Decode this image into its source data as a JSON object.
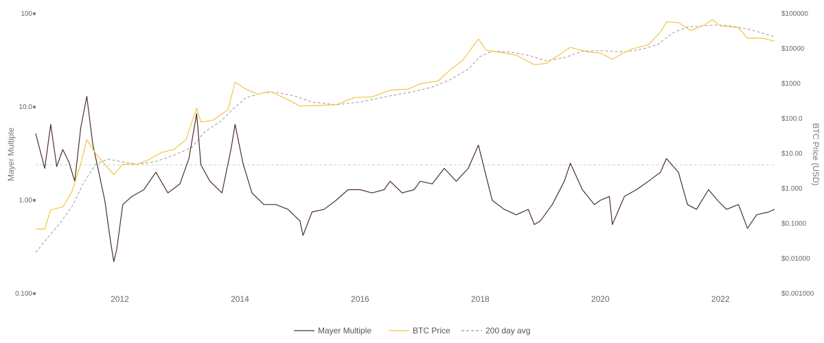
{
  "chart_data": {
    "type": "line",
    "title": "",
    "left_axis": {
      "label": "Mayer Multiple",
      "scale": "log",
      "range": [
        0.1,
        100
      ],
      "ticks": [
        {
          "value": 0.1,
          "label": "0.100"
        },
        {
          "value": 1,
          "label": "1.00"
        },
        {
          "value": 10,
          "label": "10.0"
        },
        {
          "value": 100,
          "label": "100"
        }
      ]
    },
    "right_axis": {
      "label": "BTC Price (USD)",
      "scale": "log",
      "range": [
        0.001,
        100000
      ],
      "ticks": [
        {
          "value": 0.001,
          "label": "$0.001000"
        },
        {
          "value": 0.01,
          "label": "$0.01000"
        },
        {
          "value": 0.1,
          "label": "$0.1000"
        },
        {
          "value": 1,
          "label": "$1.000"
        },
        {
          "value": 10,
          "label": "$10.00"
        },
        {
          "value": 100,
          "label": "$100.0"
        },
        {
          "value": 1000,
          "label": "$1000"
        },
        {
          "value": 10000,
          "label": "$10000"
        },
        {
          "value": 100000,
          "label": "$100000"
        }
      ]
    },
    "x_axis": {
      "range": [
        2010.6,
        2022.9
      ],
      "ticks": [
        {
          "value": 2012,
          "label": "2012"
        },
        {
          "value": 2014,
          "label": "2014"
        },
        {
          "value": 2016,
          "label": "2016"
        },
        {
          "value": 2018,
          "label": "2018"
        },
        {
          "value": 2020,
          "label": "2020"
        },
        {
          "value": 2022,
          "label": "2022"
        }
      ]
    },
    "reference_line": {
      "axis": "left",
      "value": 2.4,
      "style": "dashed"
    },
    "legend": {
      "position": "bottom-center"
    },
    "series": [
      {
        "name": "Mayer Multiple",
        "axis": "left",
        "color": "#4a2e28",
        "style": "solid",
        "points": [
          [
            2010.6,
            5.2
          ],
          [
            2010.75,
            2.2
          ],
          [
            2010.85,
            6.5
          ],
          [
            2010.95,
            2.3
          ],
          [
            2011.05,
            3.5
          ],
          [
            2011.15,
            2.6
          ],
          [
            2011.25,
            1.6
          ],
          [
            2011.35,
            6.0
          ],
          [
            2011.45,
            13.0
          ],
          [
            2011.55,
            4.0
          ],
          [
            2011.65,
            2.0
          ],
          [
            2011.75,
            1.0
          ],
          [
            2011.85,
            0.35
          ],
          [
            2011.9,
            0.22
          ],
          [
            2011.95,
            0.3
          ],
          [
            2012.05,
            0.9
          ],
          [
            2012.2,
            1.1
          ],
          [
            2012.4,
            1.3
          ],
          [
            2012.6,
            2.0
          ],
          [
            2012.8,
            1.2
          ],
          [
            2013.0,
            1.5
          ],
          [
            2013.15,
            2.8
          ],
          [
            2013.28,
            8.5
          ],
          [
            2013.35,
            2.4
          ],
          [
            2013.5,
            1.6
          ],
          [
            2013.7,
            1.2
          ],
          [
            2013.85,
            3.5
          ],
          [
            2013.92,
            6.5
          ],
          [
            2014.05,
            2.5
          ],
          [
            2014.2,
            1.2
          ],
          [
            2014.4,
            0.9
          ],
          [
            2014.6,
            0.9
          ],
          [
            2014.8,
            0.8
          ],
          [
            2015.0,
            0.6
          ],
          [
            2015.05,
            0.42
          ],
          [
            2015.2,
            0.75
          ],
          [
            2015.4,
            0.8
          ],
          [
            2015.6,
            1.0
          ],
          [
            2015.8,
            1.3
          ],
          [
            2016.0,
            1.3
          ],
          [
            2016.2,
            1.2
          ],
          [
            2016.4,
            1.3
          ],
          [
            2016.5,
            1.6
          ],
          [
            2016.7,
            1.2
          ],
          [
            2016.9,
            1.3
          ],
          [
            2017.0,
            1.6
          ],
          [
            2017.2,
            1.5
          ],
          [
            2017.4,
            2.2
          ],
          [
            2017.6,
            1.6
          ],
          [
            2017.8,
            2.2
          ],
          [
            2017.97,
            3.9
          ],
          [
            2018.1,
            1.8
          ],
          [
            2018.2,
            1.0
          ],
          [
            2018.4,
            0.8
          ],
          [
            2018.6,
            0.7
          ],
          [
            2018.8,
            0.8
          ],
          [
            2018.9,
            0.55
          ],
          [
            2019.0,
            0.6
          ],
          [
            2019.2,
            0.9
          ],
          [
            2019.4,
            1.6
          ],
          [
            2019.5,
            2.5
          ],
          [
            2019.7,
            1.3
          ],
          [
            2019.9,
            0.9
          ],
          [
            2020.0,
            1.0
          ],
          [
            2020.15,
            1.1
          ],
          [
            2020.2,
            0.55
          ],
          [
            2020.4,
            1.1
          ],
          [
            2020.6,
            1.3
          ],
          [
            2020.8,
            1.6
          ],
          [
            2021.0,
            2.0
          ],
          [
            2021.1,
            2.8
          ],
          [
            2021.3,
            2.0
          ],
          [
            2021.45,
            0.9
          ],
          [
            2021.6,
            0.8
          ],
          [
            2021.8,
            1.3
          ],
          [
            2021.95,
            1.0
          ],
          [
            2022.1,
            0.8
          ],
          [
            2022.3,
            0.9
          ],
          [
            2022.45,
            0.5
          ],
          [
            2022.6,
            0.7
          ],
          [
            2022.8,
            0.75
          ],
          [
            2022.9,
            0.8
          ]
        ]
      },
      {
        "name": "BTC Price",
        "axis": "right",
        "color": "#f5c342",
        "style": "solid",
        "points": [
          [
            2010.6,
            0.07
          ],
          [
            2010.75,
            0.07
          ],
          [
            2010.85,
            0.25
          ],
          [
            2011.05,
            0.3
          ],
          [
            2011.2,
            0.8
          ],
          [
            2011.35,
            5.0
          ],
          [
            2011.45,
            25
          ],
          [
            2011.6,
            10
          ],
          [
            2011.75,
            5
          ],
          [
            2011.9,
            2.5
          ],
          [
            2012.05,
            5
          ],
          [
            2012.3,
            5
          ],
          [
            2012.5,
            7
          ],
          [
            2012.7,
            11
          ],
          [
            2012.9,
            13
          ],
          [
            2013.1,
            25
          ],
          [
            2013.28,
            200
          ],
          [
            2013.35,
            80
          ],
          [
            2013.55,
            90
          ],
          [
            2013.8,
            180
          ],
          [
            2013.92,
            1100
          ],
          [
            2014.1,
            700
          ],
          [
            2014.3,
            500
          ],
          [
            2014.5,
            600
          ],
          [
            2014.8,
            350
          ],
          [
            2015.0,
            230
          ],
          [
            2015.3,
            240
          ],
          [
            2015.6,
            250
          ],
          [
            2015.9,
            400
          ],
          [
            2016.2,
            420
          ],
          [
            2016.5,
            650
          ],
          [
            2016.8,
            700
          ],
          [
            2017.0,
            1000
          ],
          [
            2017.3,
            1200
          ],
          [
            2017.5,
            2500
          ],
          [
            2017.7,
            4500
          ],
          [
            2017.97,
            19000
          ],
          [
            2018.1,
            9000
          ],
          [
            2018.3,
            8000
          ],
          [
            2018.6,
            6500
          ],
          [
            2018.9,
            3500
          ],
          [
            2019.1,
            3800
          ],
          [
            2019.5,
            11000
          ],
          [
            2019.8,
            8000
          ],
          [
            2020.0,
            7500
          ],
          [
            2020.2,
            5000
          ],
          [
            2020.5,
            9500
          ],
          [
            2020.8,
            13000
          ],
          [
            2021.0,
            30000
          ],
          [
            2021.1,
            58000
          ],
          [
            2021.3,
            56000
          ],
          [
            2021.5,
            33000
          ],
          [
            2021.7,
            45000
          ],
          [
            2021.87,
            67000
          ],
          [
            2022.0,
            45000
          ],
          [
            2022.3,
            40000
          ],
          [
            2022.45,
            20000
          ],
          [
            2022.7,
            20000
          ],
          [
            2022.9,
            16500
          ]
        ]
      },
      {
        "name": "200 day avg",
        "axis": "right",
        "color": "#999999",
        "style": "dashed",
        "points": [
          [
            2010.6,
            0.015
          ],
          [
            2010.8,
            0.04
          ],
          [
            2011.0,
            0.1
          ],
          [
            2011.2,
            0.3
          ],
          [
            2011.4,
            1.5
          ],
          [
            2011.6,
            5
          ],
          [
            2011.8,
            7
          ],
          [
            2012.0,
            6
          ],
          [
            2012.3,
            5
          ],
          [
            2012.6,
            6
          ],
          [
            2012.9,
            9
          ],
          [
            2013.2,
            15
          ],
          [
            2013.4,
            40
          ],
          [
            2013.7,
            90
          ],
          [
            2013.9,
            200
          ],
          [
            2014.1,
            400
          ],
          [
            2014.4,
            550
          ],
          [
            2014.6,
            570
          ],
          [
            2014.9,
            450
          ],
          [
            2015.2,
            300
          ],
          [
            2015.6,
            250
          ],
          [
            2016.0,
            300
          ],
          [
            2016.5,
            450
          ],
          [
            2016.9,
            600
          ],
          [
            2017.2,
            800
          ],
          [
            2017.5,
            1300
          ],
          [
            2017.8,
            2600
          ],
          [
            2018.0,
            6000
          ],
          [
            2018.2,
            8500
          ],
          [
            2018.5,
            8000
          ],
          [
            2018.8,
            6500
          ],
          [
            2019.1,
            4500
          ],
          [
            2019.4,
            5500
          ],
          [
            2019.7,
            8500
          ],
          [
            2020.0,
            8800
          ],
          [
            2020.4,
            8000
          ],
          [
            2020.7,
            9800
          ],
          [
            2020.95,
            13000
          ],
          [
            2021.2,
            28000
          ],
          [
            2021.45,
            42000
          ],
          [
            2021.7,
            45000
          ],
          [
            2021.95,
            48000
          ],
          [
            2022.2,
            44000
          ],
          [
            2022.5,
            35000
          ],
          [
            2022.9,
            22000
          ]
        ]
      }
    ]
  }
}
